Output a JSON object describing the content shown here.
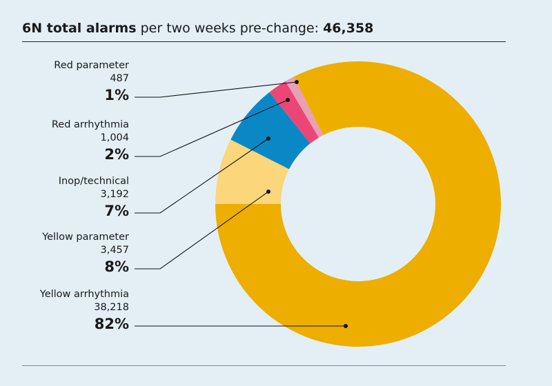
{
  "title": {
    "bold": "6N total alarms",
    "regular": " per two weeks pre-change: ",
    "total": "46,358"
  },
  "chart_data": {
    "type": "pie",
    "variant": "donut",
    "title": "6N total alarms per two weeks pre-change: 46,358",
    "total": 46358,
    "slices": [
      {
        "name": "Red parameter",
        "value": 487,
        "value_label": "487",
        "percent_label": "1%",
        "color": "#e99fb5"
      },
      {
        "name": "Red arrhythmia",
        "value": 1004,
        "value_label": "1,004",
        "percent_label": "2%",
        "color": "#ec4677"
      },
      {
        "name": "Inop/technical",
        "value": 3192,
        "value_label": "3,192",
        "percent_label": "7%",
        "color": "#0a88c6"
      },
      {
        "name": "Yellow parameter",
        "value": 3457,
        "value_label": "3,457",
        "percent_label": "8%",
        "color": "#fbd67b"
      },
      {
        "name": "Yellow arrhythmia",
        "value": 38218,
        "value_label": "38,218",
        "percent_label": "82%",
        "color": "#edae00"
      }
    ]
  }
}
